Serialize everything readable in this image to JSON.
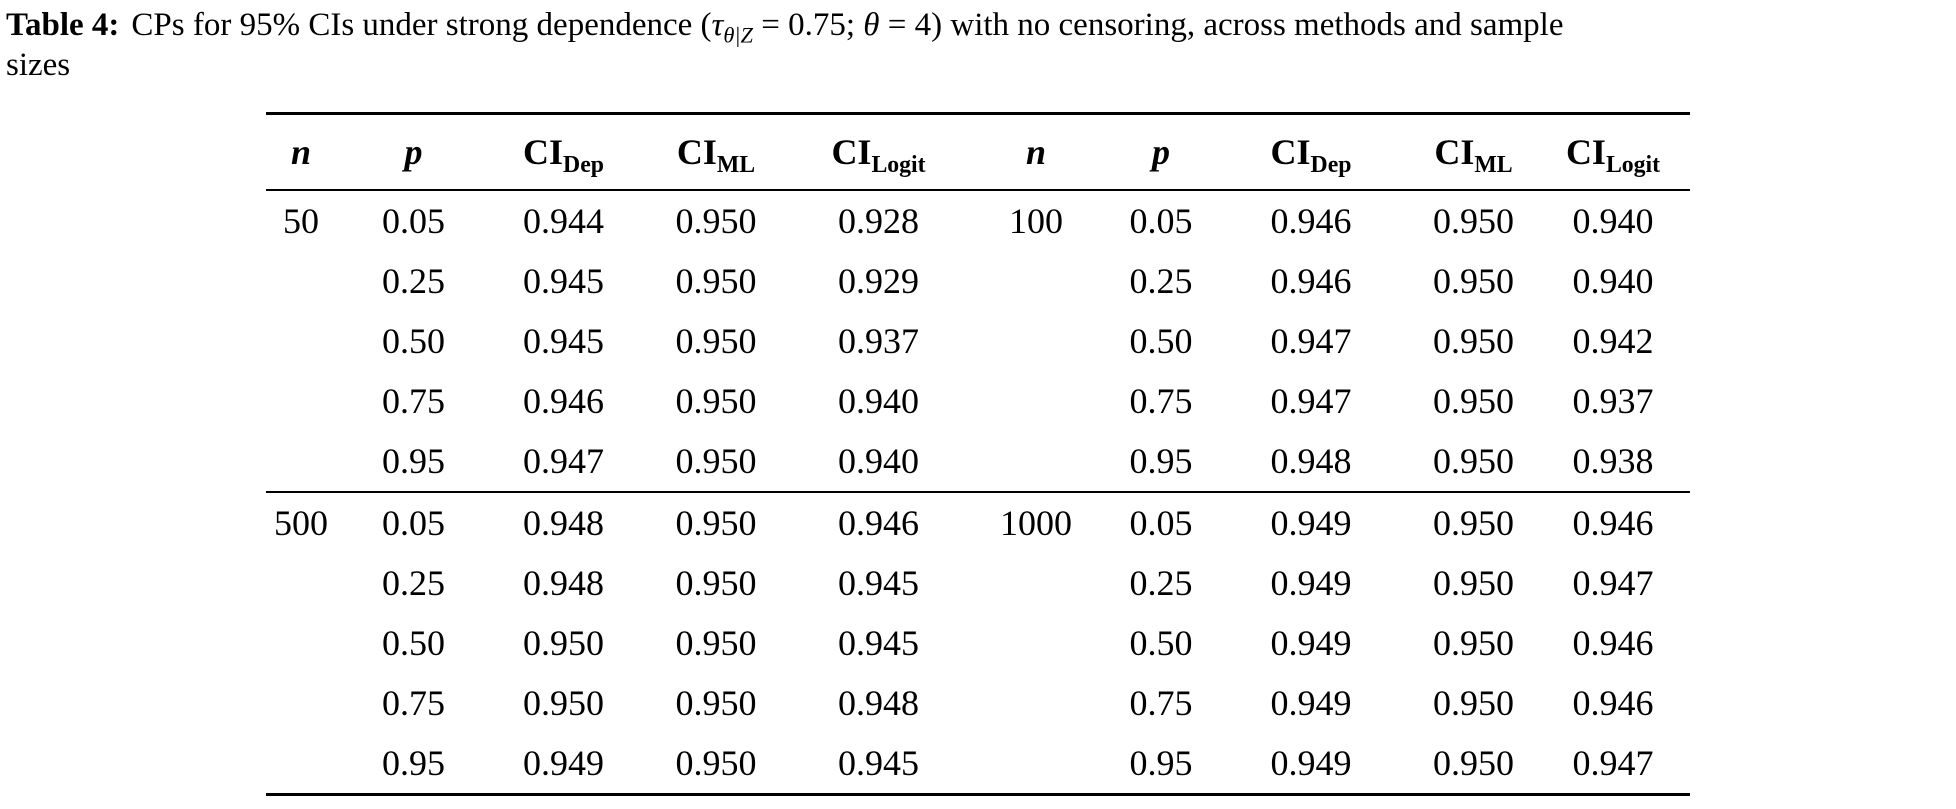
{
  "caption": {
    "label": "Table 4:",
    "pre": "CPs for 95% CIs under strong dependence (",
    "tau": "τ",
    "tau_sub": "θ|Z",
    "mid": " = 0.75; ",
    "theta": "θ",
    "post": " = 4) with no censoring, across methods and sample",
    "line2": "sizes"
  },
  "table": {
    "header": {
      "n": "n",
      "p": "p",
      "ci": "CI",
      "dep": "Dep",
      "ml": "ML",
      "logit": "Logit"
    },
    "body": {
      "groups": [
        {
          "rows": [
            [
              "50",
              "0.05",
              "0.944",
              "0.950",
              "0.928",
              "100",
              "0.05",
              "0.946",
              "0.950",
              "0.940"
            ],
            [
              "",
              "0.25",
              "0.945",
              "0.950",
              "0.929",
              "",
              "0.25",
              "0.946",
              "0.950",
              "0.940"
            ],
            [
              "",
              "0.50",
              "0.945",
              "0.950",
              "0.937",
              "",
              "0.50",
              "0.947",
              "0.950",
              "0.942"
            ],
            [
              "",
              "0.75",
              "0.946",
              "0.950",
              "0.940",
              "",
              "0.75",
              "0.947",
              "0.950",
              "0.937"
            ],
            [
              "",
              "0.95",
              "0.947",
              "0.950",
              "0.940",
              "",
              "0.95",
              "0.948",
              "0.950",
              "0.938"
            ]
          ]
        },
        {
          "rows": [
            [
              "500",
              "0.05",
              "0.948",
              "0.950",
              "0.946",
              "1000",
              "0.05",
              "0.949",
              "0.950",
              "0.946"
            ],
            [
              "",
              "0.25",
              "0.948",
              "0.950",
              "0.945",
              "",
              "0.25",
              "0.949",
              "0.950",
              "0.947"
            ],
            [
              "",
              "0.50",
              "0.950",
              "0.950",
              "0.945",
              "",
              "0.50",
              "0.949",
              "0.950",
              "0.946"
            ],
            [
              "",
              "0.75",
              "0.950",
              "0.950",
              "0.948",
              "",
              "0.75",
              "0.949",
              "0.950",
              "0.946"
            ],
            [
              "",
              "0.95",
              "0.949",
              "0.950",
              "0.945",
              "",
              "0.95",
              "0.949",
              "0.950",
              "0.947"
            ]
          ]
        }
      ]
    }
  }
}
